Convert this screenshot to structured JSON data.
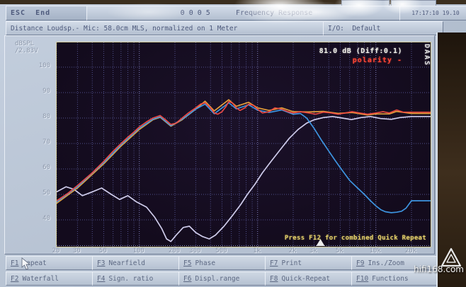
{
  "titlebar": {
    "esc": "ESC  End",
    "title": "0 0 0 5      Frequency Response",
    "clock": "17:17:10 19.10"
  },
  "infobar": {
    "distance": "Distance Loudsp.- Mic: 58.0cm MLS, normalized on 1 Meter",
    "io": "I/O:  Default"
  },
  "plot": {
    "readout": "81.0 dB (Diff:0.1)",
    "polarity": "polarity -",
    "hint": "Press F12 for combined Quick Repeat",
    "logo": "DAAS"
  },
  "function_keys": [
    {
      "key": "F1",
      "label": "Repeat"
    },
    {
      "key": "F3",
      "label": "Nearfield"
    },
    {
      "key": "F5",
      "label": "Phase"
    },
    {
      "key": "F7",
      "label": "Print"
    },
    {
      "key": "F9",
      "label": "Ins./Zoom"
    },
    {
      "key": "F2",
      "label": "Waterfall"
    },
    {
      "key": "F4",
      "label": "Sign. ratio"
    },
    {
      "key": "F6",
      "label": "Displ.range"
    },
    {
      "key": "F8",
      "label": "Quick-Repeat"
    },
    {
      "key": "F10",
      "label": "Functions"
    }
  ],
  "watermark": "hifi168.com",
  "chart_data": {
    "type": "line",
    "title": "Frequency Response",
    "x_scale": "log",
    "x_range_hz": [
      20,
      20000
    ],
    "x_ticks": [
      {
        "label": "20",
        "f": 20
      },
      {
        "label": "30",
        "f": 30
      },
      {
        "label": "50",
        "f": 50
      },
      {
        "label": "100",
        "f": 100
      },
      {
        "label": "200",
        "f": 200
      },
      {
        "label": "300",
        "f": 300
      },
      {
        "label": "500",
        "f": 500
      },
      {
        "label": "1k",
        "f": 1000
      },
      {
        "label": "2k",
        "f": 2000
      },
      {
        "label": "3k",
        "f": 3000
      },
      {
        "label": "5k",
        "f": 5000
      },
      {
        "label": "10k",
        "f": 10000
      },
      {
        "label": "20k",
        "f": 20000
      }
    ],
    "ylabel_unit": [
      "dBSPL",
      "/2.83V"
    ],
    "y_ticks": [
      100,
      90,
      80,
      70,
      60,
      50,
      40
    ],
    "y_range": [
      30,
      110
    ],
    "grid": "dotted",
    "cursor_freq_hz": 3400,
    "series": [
      {
        "name": "tweeter-lavender",
        "color": "#d8d6f6",
        "points": [
          [
            20,
            51
          ],
          [
            24,
            53
          ],
          [
            28,
            52
          ],
          [
            33,
            49.5
          ],
          [
            40,
            51
          ],
          [
            48,
            52.5
          ],
          [
            58,
            50
          ],
          [
            68,
            48
          ],
          [
            80,
            49.5
          ],
          [
            95,
            47
          ],
          [
            115,
            45
          ],
          [
            135,
            41
          ],
          [
            155,
            36.5
          ],
          [
            170,
            32.5
          ],
          [
            185,
            31.5
          ],
          [
            205,
            34
          ],
          [
            235,
            37
          ],
          [
            265,
            37.5
          ],
          [
            300,
            35
          ],
          [
            340,
            33.5
          ],
          [
            390,
            32.5
          ],
          [
            440,
            34
          ],
          [
            520,
            37.5
          ],
          [
            620,
            42
          ],
          [
            720,
            46
          ],
          [
            820,
            50
          ],
          [
            950,
            54
          ],
          [
            1100,
            58.5
          ],
          [
            1300,
            63
          ],
          [
            1550,
            67.5
          ],
          [
            1850,
            72
          ],
          [
            2200,
            75.5
          ],
          [
            2600,
            78
          ],
          [
            3000,
            79.3
          ],
          [
            3600,
            80.2
          ],
          [
            4300,
            80.6
          ],
          [
            5200,
            80
          ],
          [
            6200,
            79.4
          ],
          [
            7500,
            80.2
          ],
          [
            9000,
            80.6
          ],
          [
            11000,
            79.8
          ],
          [
            13500,
            79.5
          ],
          [
            16000,
            80.2
          ],
          [
            20000,
            80.6
          ]
        ]
      },
      {
        "name": "overlay-orange",
        "color": "#eda63c",
        "points": [
          [
            20,
            46.5
          ],
          [
            30,
            52.5
          ],
          [
            50,
            62
          ],
          [
            70,
            69
          ],
          [
            100,
            75.5
          ],
          [
            130,
            79.3
          ],
          [
            150,
            80.3
          ],
          [
            185,
            76.8
          ],
          [
            230,
            79.3
          ],
          [
            300,
            83.5
          ],
          [
            360,
            86.6
          ],
          [
            430,
            82.8
          ],
          [
            570,
            87.2
          ],
          [
            660,
            84.6
          ],
          [
            840,
            86.2
          ],
          [
            1000,
            84
          ],
          [
            1250,
            83
          ],
          [
            1600,
            84
          ],
          [
            2000,
            82.5
          ],
          [
            2700,
            82.4
          ],
          [
            3600,
            82.6
          ],
          [
            4800,
            81.8
          ],
          [
            6300,
            82.2
          ],
          [
            8500,
            81.2
          ],
          [
            10000,
            81.6
          ],
          [
            13000,
            81.6
          ],
          [
            15000,
            82.6
          ],
          [
            20000,
            81.8
          ]
        ]
      },
      {
        "name": "woofer-blue",
        "color": "#3f9ceb",
        "points": [
          [
            20,
            47
          ],
          [
            30,
            53
          ],
          [
            50,
            62.5
          ],
          [
            70,
            69.5
          ],
          [
            100,
            76
          ],
          [
            130,
            79.5
          ],
          [
            150,
            80.5
          ],
          [
            185,
            77
          ],
          [
            230,
            79.5
          ],
          [
            300,
            83.5
          ],
          [
            360,
            85.5
          ],
          [
            430,
            81.7
          ],
          [
            570,
            86
          ],
          [
            660,
            83.6
          ],
          [
            840,
            85.2
          ],
          [
            1000,
            83.1
          ],
          [
            1250,
            82.2
          ],
          [
            1600,
            83.2
          ],
          [
            2000,
            81.5
          ],
          [
            2300,
            81.8
          ],
          [
            2600,
            80
          ],
          [
            3000,
            76
          ],
          [
            3500,
            71
          ],
          [
            4000,
            67
          ],
          [
            4500,
            63.5
          ],
          [
            5000,
            60.5
          ],
          [
            6000,
            55.5
          ],
          [
            7000,
            52.5
          ],
          [
            8000,
            50
          ],
          [
            9000,
            47.5
          ],
          [
            10000,
            45.5
          ],
          [
            11000,
            44
          ],
          [
            12000,
            43.2
          ],
          [
            13500,
            42.8
          ],
          [
            15000,
            43
          ],
          [
            16500,
            43.4
          ],
          [
            18000,
            44.6
          ],
          [
            20000,
            47.5
          ]
        ]
      },
      {
        "name": "total-red",
        "color": "#f04a42",
        "points": [
          [
            20,
            47.5
          ],
          [
            25,
            50.5
          ],
          [
            30,
            53.5
          ],
          [
            40,
            58.5
          ],
          [
            50,
            63
          ],
          [
            60,
            67
          ],
          [
            70,
            70
          ],
          [
            80,
            72.5
          ],
          [
            90,
            74.5
          ],
          [
            100,
            76.5
          ],
          [
            115,
            78.5
          ],
          [
            130,
            80
          ],
          [
            150,
            81
          ],
          [
            165,
            79.5
          ],
          [
            185,
            77.5
          ],
          [
            205,
            78
          ],
          [
            230,
            80
          ],
          [
            260,
            82
          ],
          [
            300,
            84
          ],
          [
            330,
            85.5
          ],
          [
            360,
            86
          ],
          [
            400,
            84
          ],
          [
            430,
            82
          ],
          [
            460,
            81.5
          ],
          [
            500,
            82.5
          ],
          [
            540,
            84.5
          ],
          [
            570,
            86.5
          ],
          [
            610,
            86
          ],
          [
            660,
            84
          ],
          [
            710,
            83
          ],
          [
            780,
            84
          ],
          [
            840,
            85.5
          ],
          [
            920,
            85
          ],
          [
            1000,
            83.5
          ],
          [
            1100,
            82
          ],
          [
            1250,
            82.5
          ],
          [
            1400,
            84
          ],
          [
            1600,
            83.5
          ],
          [
            1800,
            82.5
          ],
          [
            2000,
            82
          ],
          [
            2300,
            82.5
          ],
          [
            2700,
            82
          ],
          [
            3100,
            81.5
          ],
          [
            3600,
            82.3
          ],
          [
            4200,
            82
          ],
          [
            4800,
            81.5
          ],
          [
            5500,
            82
          ],
          [
            6300,
            82.5
          ],
          [
            7300,
            82
          ],
          [
            8500,
            81.5
          ],
          [
            10000,
            82
          ],
          [
            11500,
            82.5
          ],
          [
            13000,
            82
          ],
          [
            15000,
            83.2
          ],
          [
            17000,
            82.3
          ],
          [
            20000,
            82.3
          ]
        ]
      }
    ]
  }
}
